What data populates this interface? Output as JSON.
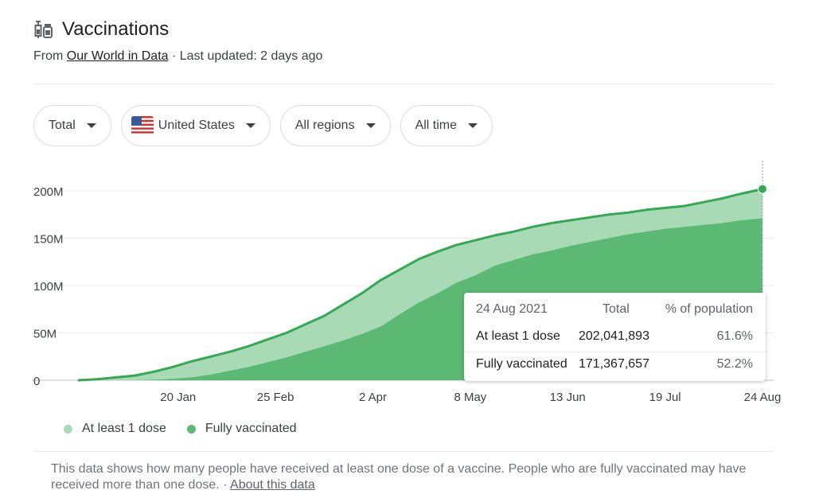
{
  "header": {
    "title": "Vaccinations",
    "icon": "syringe-vial-icon",
    "source_prefix": "From",
    "source_link": "Our World in Data",
    "updated": " · Last updated: 2 days ago"
  },
  "filters": [
    {
      "label": "Total"
    },
    {
      "label": "United States",
      "icon": "us-flag-icon"
    },
    {
      "label": "All regions"
    },
    {
      "label": "All time"
    }
  ],
  "tooltip": {
    "date": "24 Aug 2021",
    "col_total": "Total",
    "col_pct": "% of population",
    "rows": [
      {
        "label": "At least 1 dose",
        "total": "202,041,893",
        "pct": "61.6%"
      },
      {
        "label": "Fully vaccinated",
        "total": "171,367,657",
        "pct": "52.2%"
      }
    ]
  },
  "legend": [
    {
      "label": "At least 1 dose",
      "color": "#a8dab5"
    },
    {
      "label": "Fully vaccinated",
      "color": "#5bb974"
    }
  ],
  "footer": {
    "text": "This data shows how many people have received at least one dose of a vaccine. People who are fully vaccinated may have received more than one dose.",
    "sep": " · ",
    "link": "About this data"
  },
  "chart_data": {
    "type": "area",
    "title": "",
    "xlabel": "",
    "ylabel": "",
    "x_ticks": [
      "20 Jan",
      "25 Feb",
      "2 Apr",
      "8 May",
      "13 Jun",
      "19 Jul",
      "24 Aug"
    ],
    "y_ticks": [
      "0",
      "50M",
      "100M",
      "150M",
      "200M"
    ],
    "x": [
      "2020-12-14",
      "2020-12-21",
      "2020-12-28",
      "2021-01-04",
      "2021-01-11",
      "2021-01-18",
      "2021-01-25",
      "2021-02-01",
      "2021-02-08",
      "2021-02-15",
      "2021-02-22",
      "2021-03-01",
      "2021-03-08",
      "2021-03-15",
      "2021-03-22",
      "2021-03-29",
      "2021-04-05",
      "2021-04-12",
      "2021-04-19",
      "2021-04-26",
      "2021-05-03",
      "2021-05-10",
      "2021-05-17",
      "2021-05-24",
      "2021-05-31",
      "2021-06-07",
      "2021-06-14",
      "2021-06-21",
      "2021-06-28",
      "2021-07-05",
      "2021-07-12",
      "2021-07-19",
      "2021-07-26",
      "2021-08-02",
      "2021-08-09",
      "2021-08-16",
      "2021-08-24"
    ],
    "series": [
      {
        "name": "At least 1 dose",
        "color": "#a8dab5",
        "line_color": "#34a853",
        "values": [
          0,
          1,
          3,
          5,
          9,
          14,
          20,
          25,
          30,
          36,
          43,
          50,
          59,
          68,
          80,
          92,
          106,
          117,
          128,
          136,
          143,
          148,
          153,
          157,
          162,
          166,
          169,
          172,
          175,
          177,
          180,
          182,
          184,
          188,
          192,
          197,
          202
        ]
      },
      {
        "name": "Fully vaccinated",
        "color": "#5bb974",
        "values": [
          0,
          0,
          0,
          0,
          0.5,
          1.5,
          3,
          6,
          10,
          14,
          19,
          24,
          30,
          36,
          42,
          49,
          57,
          70,
          82,
          92,
          103,
          111,
          121,
          127,
          133,
          137,
          142,
          146,
          150,
          154,
          157,
          160,
          162,
          164,
          166,
          169,
          171
        ]
      }
    ],
    "ylim": [
      0,
      210
    ],
    "grid": true,
    "legend": "bottom-left"
  }
}
